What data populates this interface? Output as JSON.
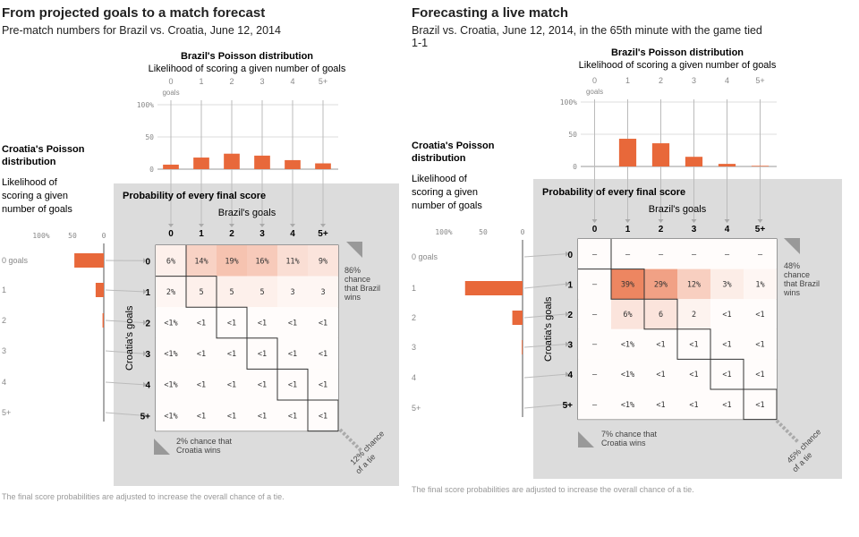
{
  "panels": [
    {
      "title": "From projected goals to a match forecast",
      "subtitle": "Pre-match numbers for Brazil vs. Croatia, June 12, 2014",
      "footnote": "The final score probabilities are adjusted to increase the overall chance of a tie.",
      "brazil_title": "Brazil's Poisson distribution",
      "brazil_subtitle": "Likelihood of scoring a given number of goals",
      "croatia_title_lines": [
        "Croatia's Poisson",
        "distribution"
      ],
      "croatia_subtitle_lines": [
        "Likelihood of",
        "scoring a given",
        "number of goals"
      ],
      "matrix_title": "Probability of every final score",
      "brazil_axis_label": "Brazil's goals",
      "croatia_axis_label": "Croatia's goals",
      "brazil_win_lines": [
        "86%",
        "chance",
        "that Brazil",
        "wins"
      ],
      "croatia_win_lines": [
        "2% chance that",
        "Croatia wins"
      ],
      "tie_lines": [
        "12% chance",
        "of a tie"
      ]
    },
    {
      "title": "Forecasting a live match",
      "subtitle": "Brazil vs. Croatia, June 12, 2014, in the 65th minute with the game tied 1-1",
      "footnote": "The final score probabilities are adjusted to increase the overall chance of a tie.",
      "brazil_title": "Brazil's Poisson distribution",
      "brazil_subtitle": "Likelihood of scoring a given number of goals",
      "croatia_title_lines": [
        "Croatia's Poisson",
        "distribution"
      ],
      "croatia_subtitle_lines": [
        "Likelihood of",
        "scoring a given",
        "number of goals"
      ],
      "matrix_title": "Probability of every final score",
      "brazil_axis_label": "Brazil's goals",
      "croatia_axis_label": "Croatia's goals",
      "brazil_win_lines": [
        "48%",
        "chance",
        "that Brazil",
        "wins"
      ],
      "croatia_win_lines": [
        "7% chance that",
        "Croatia wins"
      ],
      "tie_lines": [
        "45% chance",
        "of a tie"
      ]
    }
  ],
  "chart_data": [
    {
      "type": "bar",
      "title": "Brazil's Poisson distribution",
      "subtitle": "Likelihood of scoring a given number of goals",
      "categories": [
        "0",
        "1",
        "2",
        "3",
        "4",
        "5+"
      ],
      "first_category_sublabel": "goals",
      "values": [
        7,
        18,
        24,
        21,
        14,
        9
      ],
      "ylim": [
        0,
        100
      ],
      "yticks": [
        "100%",
        "50",
        "0"
      ],
      "color": "#e8683a"
    },
    {
      "type": "bar",
      "title": "Croatia's Poisson distribution",
      "subtitle": "Likelihood of scoring a given number of goals",
      "orientation": "horizontal",
      "categories": [
        "0 goals",
        "1",
        "2",
        "3",
        "4",
        "5+"
      ],
      "values": [
        47,
        13,
        2,
        0,
        0,
        0
      ],
      "xlim": [
        0,
        100
      ],
      "xticks": [
        "100%",
        "50",
        "0"
      ],
      "color": "#e8683a"
    },
    {
      "type": "heatmap",
      "title": "Probability of every final score",
      "xlabel": "Brazil's goals",
      "ylabel": "Croatia's goals",
      "x_categories": [
        "0",
        "1",
        "2",
        "3",
        "4",
        "5+"
      ],
      "y_categories": [
        "0",
        "1",
        "2",
        "3",
        "4",
        "5+"
      ],
      "cells": [
        [
          "6%",
          "14%",
          "19%",
          "16%",
          "11%",
          "9%"
        ],
        [
          "2%",
          "5",
          "5",
          "5",
          "3",
          "3"
        ],
        [
          "<1%",
          "<1",
          "<1",
          "<1",
          "<1",
          "<1"
        ],
        [
          "<1%",
          "<1",
          "<1",
          "<1",
          "<1",
          "<1"
        ],
        [
          "<1%",
          "<1",
          "<1",
          "<1",
          "<1",
          "<1"
        ],
        [
          "<1%",
          "<1",
          "<1",
          "<1",
          "<1",
          "<1"
        ]
      ],
      "shading": [
        [
          0.1,
          0.3,
          0.4,
          0.35,
          0.22,
          0.18
        ],
        [
          0.06,
          0.1,
          0.1,
          0.1,
          0.06,
          0.06
        ],
        [
          0.02,
          0.02,
          0.02,
          0.02,
          0.02,
          0.02
        ],
        [
          0.02,
          0.02,
          0.02,
          0.02,
          0.02,
          0.02
        ],
        [
          0.02,
          0.02,
          0.02,
          0.02,
          0.02,
          0.02
        ],
        [
          0.02,
          0.02,
          0.02,
          0.02,
          0.02,
          0.02
        ]
      ],
      "brazil_win_pct": 86,
      "croatia_win_pct": 2,
      "tie_pct": 12
    },
    {
      "type": "bar",
      "title": "Brazil's Poisson distribution",
      "subtitle": "Likelihood of scoring a given number of goals",
      "categories": [
        "0",
        "1",
        "2",
        "3",
        "4",
        "5+"
      ],
      "first_category_sublabel": "goals",
      "values": [
        0,
        43,
        36,
        15,
        4,
        1
      ],
      "ylim": [
        0,
        100
      ],
      "yticks": [
        "100%",
        "50",
        "0"
      ],
      "color": "#e8683a"
    },
    {
      "type": "bar",
      "title": "Croatia's Poisson distribution",
      "subtitle": "Likelihood of scoring a given number of goals",
      "orientation": "horizontal",
      "categories": [
        "0 goals",
        "1",
        "2",
        "3",
        "4",
        "5+"
      ],
      "values": [
        0,
        73,
        13,
        1,
        0,
        0
      ],
      "xlim": [
        0,
        100
      ],
      "xticks": [
        "100%",
        "50",
        "0"
      ],
      "color": "#e8683a"
    },
    {
      "type": "heatmap",
      "title": "Probability of every final score",
      "xlabel": "Brazil's goals",
      "ylabel": "Croatia's goals",
      "x_categories": [
        "0",
        "1",
        "2",
        "3",
        "4",
        "5+"
      ],
      "y_categories": [
        "0",
        "1",
        "2",
        "3",
        "4",
        "5+"
      ],
      "cells": [
        [
          "–",
          "–",
          "–",
          "–",
          "–",
          "–"
        ],
        [
          "–",
          "39%",
          "29%",
          "12%",
          "3%",
          "1%"
        ],
        [
          "–",
          "6%",
          "6",
          "2",
          "<1",
          "<1"
        ],
        [
          "–",
          "<1%",
          "<1",
          "<1",
          "<1",
          "<1"
        ],
        [
          "–",
          "<1%",
          "<1",
          "<1",
          "<1",
          "<1"
        ],
        [
          "–",
          "<1%",
          "<1",
          "<1",
          "<1",
          "<1"
        ]
      ],
      "shading": [
        [
          0.02,
          0.02,
          0.02,
          0.02,
          0.02,
          0.02
        ],
        [
          0.02,
          0.8,
          0.62,
          0.32,
          0.12,
          0.06
        ],
        [
          0.02,
          0.18,
          0.18,
          0.08,
          0.02,
          0.02
        ],
        [
          0.02,
          0.02,
          0.02,
          0.02,
          0.02,
          0.02
        ],
        [
          0.02,
          0.02,
          0.02,
          0.02,
          0.02,
          0.02
        ],
        [
          0.02,
          0.02,
          0.02,
          0.02,
          0.02,
          0.02
        ]
      ],
      "brazil_win_pct": 48,
      "croatia_win_pct": 7,
      "tie_pct": 45
    }
  ]
}
